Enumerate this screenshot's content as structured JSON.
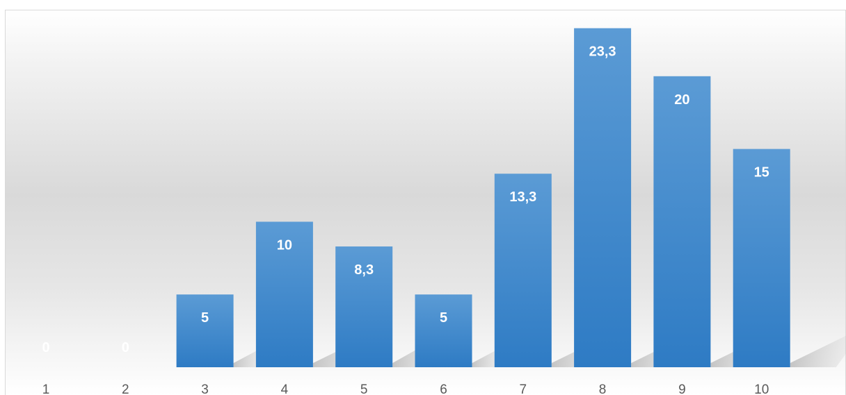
{
  "chart_data": {
    "type": "bar",
    "categories": [
      "1",
      "2",
      "3",
      "4",
      "5",
      "6",
      "7",
      "8",
      "9",
      "10"
    ],
    "values": [
      0,
      0,
      5,
      10,
      8.3,
      5,
      13.3,
      23.3,
      20,
      15
    ],
    "data_labels": [
      "0",
      "0",
      "5",
      "10",
      "8,3",
      "5",
      "13,3",
      "23,3",
      "20",
      "15"
    ],
    "title": "",
    "xlabel": "",
    "ylabel": "",
    "ylim": [
      0,
      25
    ],
    "grid": false,
    "legend": "none",
    "colors": {
      "bar_top": "#5b9bd5",
      "bar_bottom": "#2e7bc4",
      "label_text": "#ffffff",
      "tick_text": "#595959"
    }
  }
}
